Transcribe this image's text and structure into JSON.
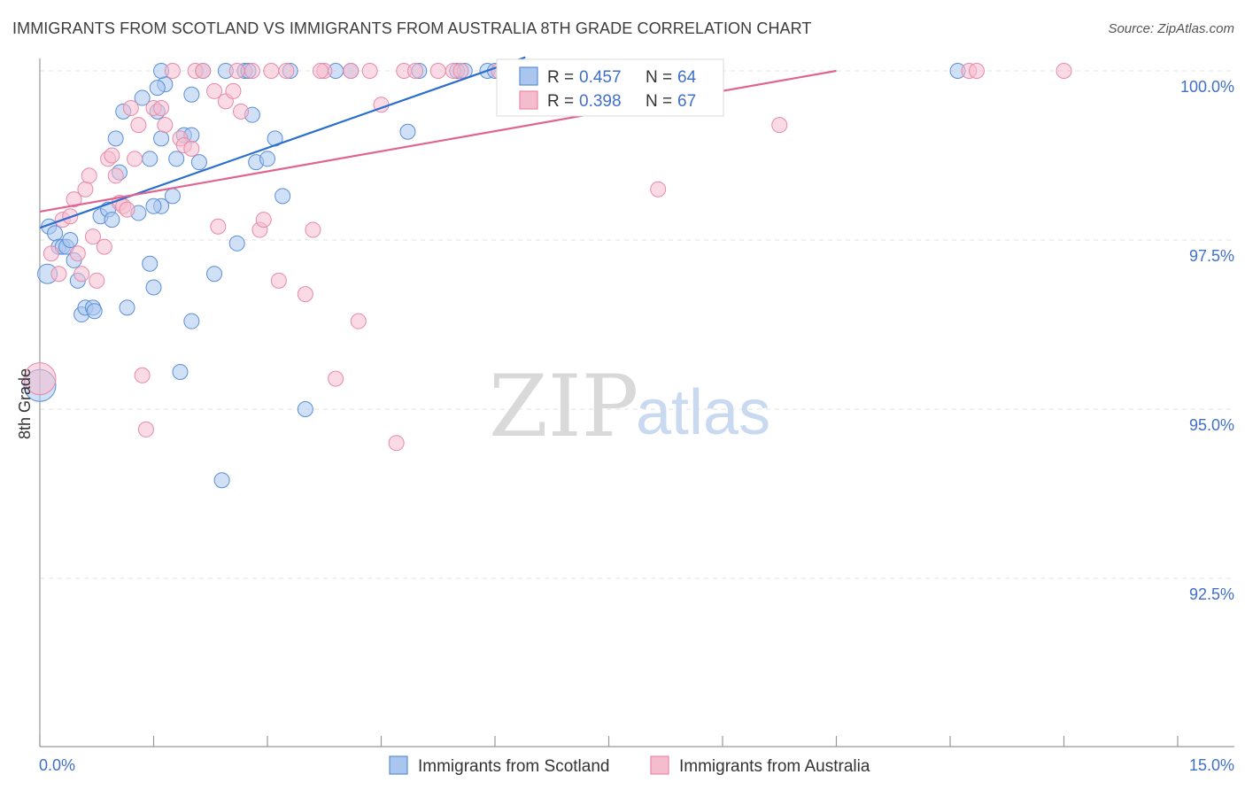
{
  "header": {
    "title": "IMMIGRANTS FROM SCOTLAND VS IMMIGRANTS FROM AUSTRALIA 8TH GRADE CORRELATION CHART",
    "source": "Source: ZipAtlas.com"
  },
  "watermark": {
    "zip": "ZIP",
    "atlas": "atlas"
  },
  "colors": {
    "scotland_fill": "#aac6ee",
    "scotland_stroke": "#5b8fd6",
    "scotland_line": "#2a6fcf",
    "australia_fill": "#f5bccd",
    "australia_stroke": "#e88aa8",
    "australia_line": "#e0648f",
    "tick_label": "#3f6fc9",
    "grid": "#e2e2e2"
  },
  "legend": {
    "items": [
      {
        "r_label": "R =",
        "r_value": "0.457",
        "n_label": "N =",
        "n_value": "64"
      },
      {
        "r_label": "R =",
        "r_value": "0.398",
        "n_label": "N =",
        "n_value": "67"
      }
    ]
  },
  "chart_data": {
    "type": "scatter",
    "title": "IMMIGRANTS FROM SCOTLAND VS IMMIGRANTS FROM AUSTRALIA 8TH GRADE CORRELATION CHART",
    "xlabel": "",
    "ylabel": "8th Grade",
    "xlim": [
      0,
      15
    ],
    "ylim": [
      91.0,
      100.25
    ],
    "x_tick_labels": [
      "0.0%",
      "15.0%"
    ],
    "y_ticks": [
      92.5,
      95.0,
      97.5,
      100.0
    ],
    "y_tick_labels": [
      "92.5%",
      "95.0%",
      "97.5%",
      "100.0%"
    ],
    "grid": true,
    "legend_position": "top-center",
    "series": [
      {
        "name": "Immigrants from Scotland",
        "r": 0.457,
        "n": 64,
        "trend": {
          "x": [
            0.0,
            6.4
          ],
          "y": [
            97.68,
            100.2
          ]
        },
        "points": [
          [
            0.0,
            95.35
          ],
          [
            0.1,
            97.0
          ],
          [
            0.12,
            97.7
          ],
          [
            0.2,
            97.6
          ],
          [
            0.25,
            97.4
          ],
          [
            0.3,
            97.4
          ],
          [
            0.35,
            97.4
          ],
          [
            0.4,
            97.5
          ],
          [
            0.45,
            97.2
          ],
          [
            0.5,
            96.9
          ],
          [
            0.55,
            96.4
          ],
          [
            0.6,
            96.5
          ],
          [
            0.7,
            96.5
          ],
          [
            0.72,
            96.45
          ],
          [
            0.8,
            97.85
          ],
          [
            0.9,
            97.95
          ],
          [
            0.95,
            97.8
          ],
          [
            1.05,
            98.5
          ],
          [
            1.0,
            99.0
          ],
          [
            1.1,
            99.4
          ],
          [
            1.15,
            96.5
          ],
          [
            1.3,
            97.9
          ],
          [
            1.35,
            99.6
          ],
          [
            1.45,
            98.7
          ],
          [
            1.55,
            99.4
          ],
          [
            1.6,
            98.0
          ],
          [
            1.65,
            99.8
          ],
          [
            1.5,
            98.0
          ],
          [
            1.45,
            97.15
          ],
          [
            1.5,
            96.8
          ],
          [
            1.55,
            99.75
          ],
          [
            1.6,
            99.0
          ],
          [
            1.75,
            98.15
          ],
          [
            1.8,
            98.7
          ],
          [
            1.85,
            95.55
          ],
          [
            1.9,
            99.05
          ],
          [
            2.0,
            99.65
          ],
          [
            1.6,
            100.0
          ],
          [
            2.0,
            96.3
          ],
          [
            2.0,
            99.05
          ],
          [
            2.1,
            98.65
          ],
          [
            2.15,
            100.0
          ],
          [
            2.3,
            97.0
          ],
          [
            2.4,
            93.95
          ],
          [
            2.45,
            100.0
          ],
          [
            2.6,
            97.45
          ],
          [
            2.7,
            100.0
          ],
          [
            2.75,
            100.0
          ],
          [
            2.8,
            99.35
          ],
          [
            2.85,
            98.65
          ],
          [
            3.0,
            98.7
          ],
          [
            3.1,
            99.0
          ],
          [
            3.2,
            98.15
          ],
          [
            3.3,
            100.0
          ],
          [
            3.5,
            95.0
          ],
          [
            3.9,
            100.0
          ],
          [
            4.1,
            100.0
          ],
          [
            4.85,
            99.1
          ],
          [
            5.0,
            100.0
          ],
          [
            5.5,
            100.0
          ],
          [
            5.6,
            100.0
          ],
          [
            5.9,
            100.0
          ],
          [
            6.0,
            100.0
          ],
          [
            12.1,
            100.0
          ]
        ]
      },
      {
        "name": "Immigrants from Australia",
        "r": 0.398,
        "n": 67,
        "trend": {
          "x": [
            0.0,
            10.5
          ],
          "y": [
            97.92,
            100.0
          ]
        },
        "points": [
          [
            0.0,
            95.45
          ],
          [
            0.15,
            97.3
          ],
          [
            0.25,
            97.0
          ],
          [
            0.3,
            97.8
          ],
          [
            0.4,
            97.85
          ],
          [
            0.5,
            97.3
          ],
          [
            0.55,
            97.0
          ],
          [
            0.6,
            98.25
          ],
          [
            0.65,
            98.45
          ],
          [
            0.75,
            96.9
          ],
          [
            0.85,
            97.4
          ],
          [
            0.9,
            98.7
          ],
          [
            0.95,
            98.75
          ],
          [
            1.0,
            98.45
          ],
          [
            1.05,
            98.05
          ],
          [
            1.1,
            98.0
          ],
          [
            1.2,
            99.45
          ],
          [
            1.25,
            98.7
          ],
          [
            1.3,
            99.2
          ],
          [
            1.35,
            95.5
          ],
          [
            1.4,
            94.7
          ],
          [
            1.5,
            99.45
          ],
          [
            1.6,
            99.45
          ],
          [
            1.65,
            99.2
          ],
          [
            1.75,
            100.0
          ],
          [
            1.85,
            99.0
          ],
          [
            1.9,
            98.9
          ],
          [
            2.0,
            98.85
          ],
          [
            2.05,
            100.0
          ],
          [
            2.15,
            100.0
          ],
          [
            2.3,
            99.7
          ],
          [
            2.35,
            97.7
          ],
          [
            2.45,
            99.55
          ],
          [
            2.55,
            99.7
          ],
          [
            2.65,
            99.4
          ],
          [
            2.8,
            100.0
          ],
          [
            2.9,
            97.65
          ],
          [
            2.95,
            97.8
          ],
          [
            3.05,
            100.0
          ],
          [
            3.15,
            96.9
          ],
          [
            3.25,
            100.0
          ],
          [
            3.5,
            96.7
          ],
          [
            3.6,
            97.65
          ],
          [
            3.75,
            100.0
          ],
          [
            3.9,
            95.45
          ],
          [
            4.1,
            100.0
          ],
          [
            4.2,
            96.3
          ],
          [
            4.35,
            100.0
          ],
          [
            4.5,
            99.5
          ],
          [
            4.7,
            94.5
          ],
          [
            4.8,
            100.0
          ],
          [
            4.95,
            100.0
          ],
          [
            5.25,
            100.0
          ],
          [
            5.45,
            100.0
          ],
          [
            5.55,
            100.0
          ],
          [
            6.05,
            100.0
          ],
          [
            6.25,
            100.0
          ],
          [
            8.15,
            98.25
          ],
          [
            9.75,
            99.2
          ],
          [
            12.25,
            100.0
          ],
          [
            12.35,
            100.0
          ],
          [
            13.5,
            100.0
          ],
          [
            0.45,
            98.1
          ],
          [
            0.7,
            97.55
          ],
          [
            1.15,
            97.95
          ],
          [
            2.6,
            100.0
          ],
          [
            3.7,
            100.0
          ]
        ]
      }
    ]
  }
}
